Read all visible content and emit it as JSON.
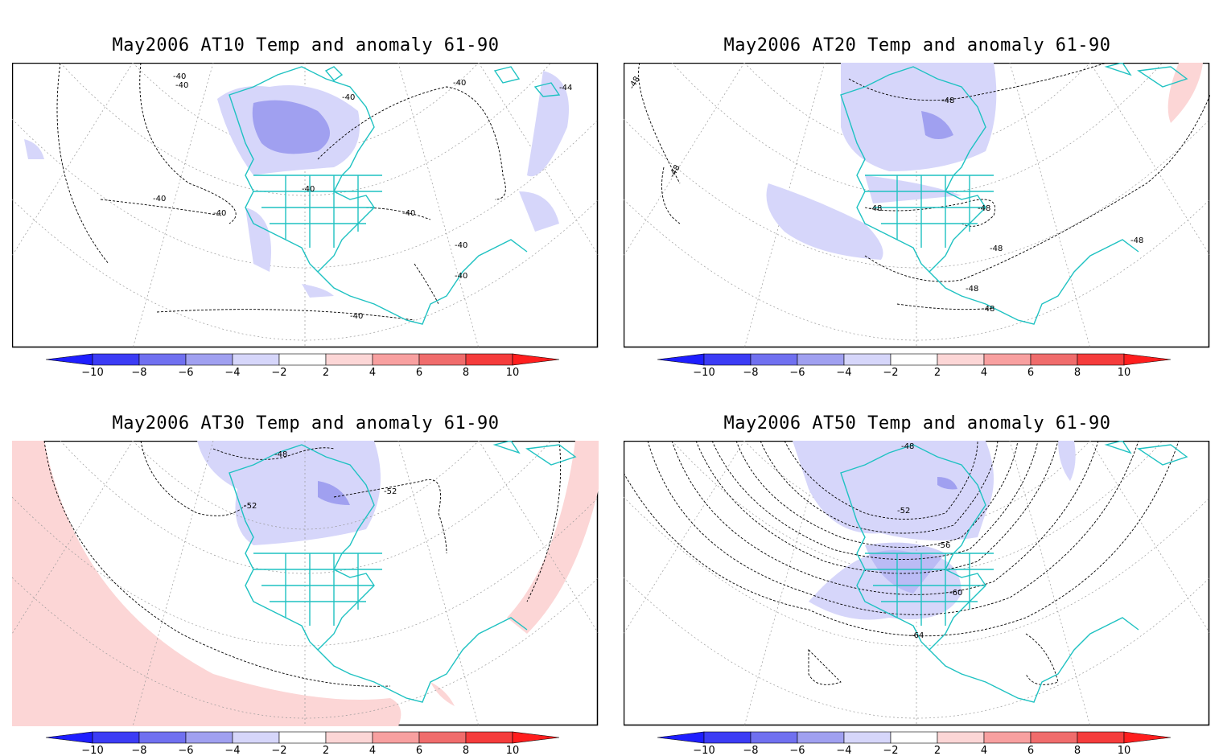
{
  "panels": [
    {
      "title": "May2006 AT10 Temp and anomaly 61-90",
      "contour_labels": [
        "-40",
        "-40",
        "-40",
        "-44",
        "-40",
        "-40",
        "-40",
        "-40",
        "-40",
        "-40",
        "-40",
        "-40"
      ]
    },
    {
      "title": "May2006 AT20 Temp and anomaly 61-90",
      "contour_labels": [
        "-48",
        "-48",
        "-48",
        "-48",
        "-48",
        "-48",
        "-48",
        "-48",
        "-48"
      ]
    },
    {
      "title": "May2006 AT30 Temp and anomaly 61-90",
      "contour_labels": [
        "-48",
        "-52",
        "-52"
      ]
    },
    {
      "title": "May2006 AT50 Temp and anomaly 61-90",
      "contour_labels": [
        "-48",
        "-52",
        "-56",
        "-60",
        "-64"
      ]
    }
  ],
  "colorbar": {
    "labels": [
      "-10",
      "-8",
      "-6",
      "-4",
      "-2",
      "2",
      "4",
      "6",
      "8",
      "10"
    ],
    "colors": [
      "#1e1eff",
      "#3c3cf5",
      "#7070f0",
      "#a0a0f0",
      "#d6d6fa",
      "#ffffff",
      "#fcd6d6",
      "#f8a0a0",
      "#f06c6c",
      "#f53c3c",
      "#ff1e1e"
    ]
  },
  "colors": {
    "coastline": "#1fc2c2",
    "contour": "#000000",
    "grid": "#999999"
  }
}
